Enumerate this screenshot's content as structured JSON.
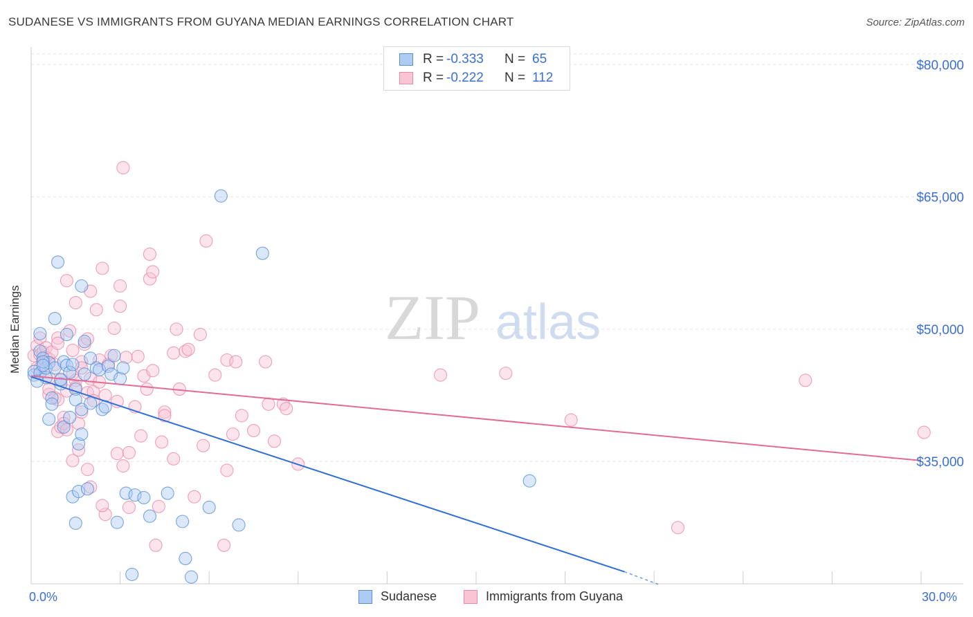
{
  "title": "SUDANESE VS IMMIGRANTS FROM GUYANA MEDIAN EARNINGS CORRELATION CHART",
  "source": "Source: ZipAtlas.com",
  "watermark": {
    "zip": "ZIP",
    "atlas": "atlas"
  },
  "legend": {
    "r_label": "R =",
    "n_label": "N =",
    "items": [
      {
        "name": "Sudanese",
        "r": "-0.333",
        "n": "65",
        "fill": "#aecbf3",
        "stroke": "#5a8fd8"
      },
      {
        "name": "Immigrants from Guyana",
        "r": "-0.222",
        "n": "112",
        "fill": "#f9c4d4",
        "stroke": "#e889a8"
      }
    ]
  },
  "colors": {
    "blue_line": "#2f6fd6",
    "pink_line": "#e26a96",
    "axis_text": "#3a6fd8",
    "grid": "#e3e3e3"
  },
  "chart_data": {
    "type": "scatter",
    "title": "SUDANESE VS IMMIGRANTS FROM GUYANA MEDIAN EARNINGS CORRELATION CHART",
    "xlabel": "",
    "ylabel": "Median Earnings",
    "xlim": [
      0,
      30
    ],
    "ylim": [
      21000,
      84000
    ],
    "x_tick_labels": [
      "0.0%",
      "30.0%"
    ],
    "y_ticks": [
      35000,
      50000,
      65000,
      80000
    ],
    "y_tick_labels": [
      "$35,000",
      "$50,000",
      "$65,000",
      "$80,000"
    ],
    "grid": true,
    "legend_placement": "top-center",
    "series": [
      {
        "name": "Sudanese",
        "r": -0.333,
        "n": 65,
        "trend": {
          "x0": 0.0,
          "y0": 44600,
          "x1": 20.0,
          "y1": 22500,
          "dash_to_x": 21.2,
          "dash_to_y": 21000
        },
        "points": [
          [
            0.1,
            44.8
          ],
          [
            0.1,
            45.2
          ],
          [
            0.3,
            47.5
          ],
          [
            0.3,
            45.0
          ],
          [
            0.3,
            49.5
          ],
          [
            0.4,
            46.7
          ],
          [
            0.5,
            44.5
          ],
          [
            0.5,
            45.6
          ],
          [
            0.6,
            46.2
          ],
          [
            0.6,
            39.8
          ],
          [
            0.7,
            42.2
          ],
          [
            0.7,
            41.5
          ],
          [
            0.8,
            51.2
          ],
          [
            0.8,
            45.6
          ],
          [
            0.9,
            57.6
          ],
          [
            1.0,
            43.8
          ],
          [
            1.1,
            38.9
          ],
          [
            1.1,
            46.3
          ],
          [
            1.2,
            49.4
          ],
          [
            1.2,
            45.9
          ],
          [
            1.3,
            45.1
          ],
          [
            1.4,
            46.0
          ],
          [
            1.4,
            31.0
          ],
          [
            1.5,
            43.2
          ],
          [
            1.5,
            42.0
          ],
          [
            1.5,
            28.0
          ],
          [
            1.6,
            31.6
          ],
          [
            1.6,
            37.0
          ],
          [
            1.7,
            40.9
          ],
          [
            1.7,
            54.9
          ],
          [
            1.8,
            48.6
          ],
          [
            1.8,
            44.9
          ],
          [
            1.7,
            38.1
          ],
          [
            1.9,
            31.9
          ],
          [
            2.0,
            41.6
          ],
          [
            2.0,
            46.7
          ],
          [
            2.2,
            45.6
          ],
          [
            2.3,
            45.4
          ],
          [
            2.4,
            40.9
          ],
          [
            2.5,
            41.2
          ],
          [
            2.6,
            45.8
          ],
          [
            2.7,
            44.9
          ],
          [
            2.8,
            47.0
          ],
          [
            2.9,
            28.1
          ],
          [
            3.0,
            44.4
          ],
          [
            3.1,
            45.6
          ],
          [
            3.2,
            31.4
          ],
          [
            3.4,
            22.2
          ],
          [
            3.5,
            31.2
          ],
          [
            3.8,
            30.9
          ],
          [
            4.0,
            28.8
          ],
          [
            4.6,
            31.4
          ],
          [
            5.1,
            28.2
          ],
          [
            5.2,
            24.0
          ],
          [
            5.4,
            21.9
          ],
          [
            6.0,
            29.8
          ],
          [
            6.4,
            65.1
          ],
          [
            7.0,
            27.8
          ],
          [
            7.8,
            58.6
          ],
          [
            16.8,
            32.8
          ],
          [
            0.4,
            46.3
          ],
          [
            1.0,
            44.3
          ],
          [
            1.3,
            40.0
          ],
          [
            0.2,
            44.1
          ],
          [
            0.4,
            45.9
          ]
        ]
      },
      {
        "name": "Immigrants from Guyana",
        "r": -0.222,
        "n": 112,
        "trend": {
          "x0": 0.0,
          "y0": 44700,
          "x1": 30.0,
          "y1": 35100
        },
        "points": [
          [
            0.1,
            47.0
          ],
          [
            0.2,
            45.6
          ],
          [
            0.2,
            48.1
          ],
          [
            0.3,
            47.1
          ],
          [
            0.3,
            45.6
          ],
          [
            0.3,
            49.0
          ],
          [
            0.4,
            47.4
          ],
          [
            0.4,
            46.3
          ],
          [
            0.5,
            46.8
          ],
          [
            0.5,
            47.9
          ],
          [
            0.6,
            46.6
          ],
          [
            0.6,
            42.6
          ],
          [
            0.6,
            44.5
          ],
          [
            0.6,
            43.2
          ],
          [
            0.7,
            47.4
          ],
          [
            0.8,
            46.0
          ],
          [
            0.8,
            42.2
          ],
          [
            0.9,
            49.0
          ],
          [
            0.9,
            48.4
          ],
          [
            0.9,
            38.4
          ],
          [
            1.0,
            44.2
          ],
          [
            1.0,
            38.9
          ],
          [
            1.1,
            40.0
          ],
          [
            1.1,
            39.3
          ],
          [
            1.2,
            55.5
          ],
          [
            1.2,
            43.0
          ],
          [
            1.2,
            38.6
          ],
          [
            1.3,
            49.8
          ],
          [
            1.4,
            47.6
          ],
          [
            1.4,
            45.0
          ],
          [
            1.4,
            35.1
          ],
          [
            1.5,
            53.0
          ],
          [
            1.5,
            44.2
          ],
          [
            1.5,
            43.4
          ],
          [
            1.6,
            39.3
          ],
          [
            1.7,
            46.3
          ],
          [
            1.7,
            40.6
          ],
          [
            1.7,
            45.6
          ],
          [
            1.8,
            48.3
          ],
          [
            1.9,
            48.9
          ],
          [
            1.9,
            42.8
          ],
          [
            1.9,
            34.1
          ],
          [
            2.0,
            54.3
          ],
          [
            2.0,
            44.4
          ],
          [
            2.0,
            32.1
          ],
          [
            2.1,
            42.9
          ],
          [
            2.1,
            41.9
          ],
          [
            2.2,
            52.2
          ],
          [
            2.3,
            46.5
          ],
          [
            2.3,
            44.0
          ],
          [
            2.4,
            56.9
          ],
          [
            2.5,
            42.5
          ],
          [
            2.5,
            29.0
          ],
          [
            2.7,
            47.0
          ],
          [
            2.8,
            50.1
          ],
          [
            2.9,
            41.8
          ],
          [
            2.9,
            35.9
          ],
          [
            3.0,
            52.6
          ],
          [
            3.0,
            54.9
          ],
          [
            3.1,
            34.5
          ],
          [
            3.2,
            46.8
          ],
          [
            3.3,
            36.0
          ],
          [
            3.3,
            29.8
          ],
          [
            3.5,
            41.2
          ],
          [
            3.6,
            46.9
          ],
          [
            3.7,
            37.9
          ],
          [
            3.8,
            44.7
          ],
          [
            3.9,
            43.2
          ],
          [
            4.0,
            58.5
          ],
          [
            4.0,
            55.7
          ],
          [
            4.1,
            56.5
          ],
          [
            4.1,
            45.3
          ],
          [
            4.2,
            25.5
          ],
          [
            4.3,
            29.9
          ],
          [
            4.4,
            37.2
          ],
          [
            4.5,
            40.6
          ],
          [
            4.5,
            40.2
          ],
          [
            4.8,
            47.3
          ],
          [
            4.8,
            35.3
          ],
          [
            4.9,
            50.0
          ],
          [
            5.0,
            43.2
          ],
          [
            5.2,
            47.5
          ],
          [
            5.3,
            47.7
          ],
          [
            5.5,
            31.0
          ],
          [
            5.7,
            49.4
          ],
          [
            5.8,
            36.8
          ],
          [
            5.9,
            60.0
          ],
          [
            6.2,
            44.8
          ],
          [
            6.5,
            25.5
          ],
          [
            6.6,
            46.5
          ],
          [
            6.6,
            34.0
          ],
          [
            6.8,
            38.1
          ],
          [
            6.9,
            46.3
          ],
          [
            7.1,
            40.2
          ],
          [
            7.5,
            38.5
          ],
          [
            7.9,
            46.3
          ],
          [
            8.0,
            41.5
          ],
          [
            8.2,
            37.3
          ],
          [
            8.5,
            41.5
          ],
          [
            8.6,
            41.0
          ],
          [
            9.0,
            34.7
          ],
          [
            13.8,
            44.8
          ],
          [
            16.0,
            45.0
          ],
          [
            18.2,
            39.7
          ],
          [
            21.8,
            27.5
          ],
          [
            26.1,
            44.2
          ],
          [
            30.1,
            38.3
          ],
          [
            3.1,
            68.3
          ],
          [
            2.4,
            30.0
          ],
          [
            0.9,
            42.0
          ],
          [
            1.6,
            36.3
          ],
          [
            2.6,
            46.0
          ]
        ]
      }
    ]
  }
}
